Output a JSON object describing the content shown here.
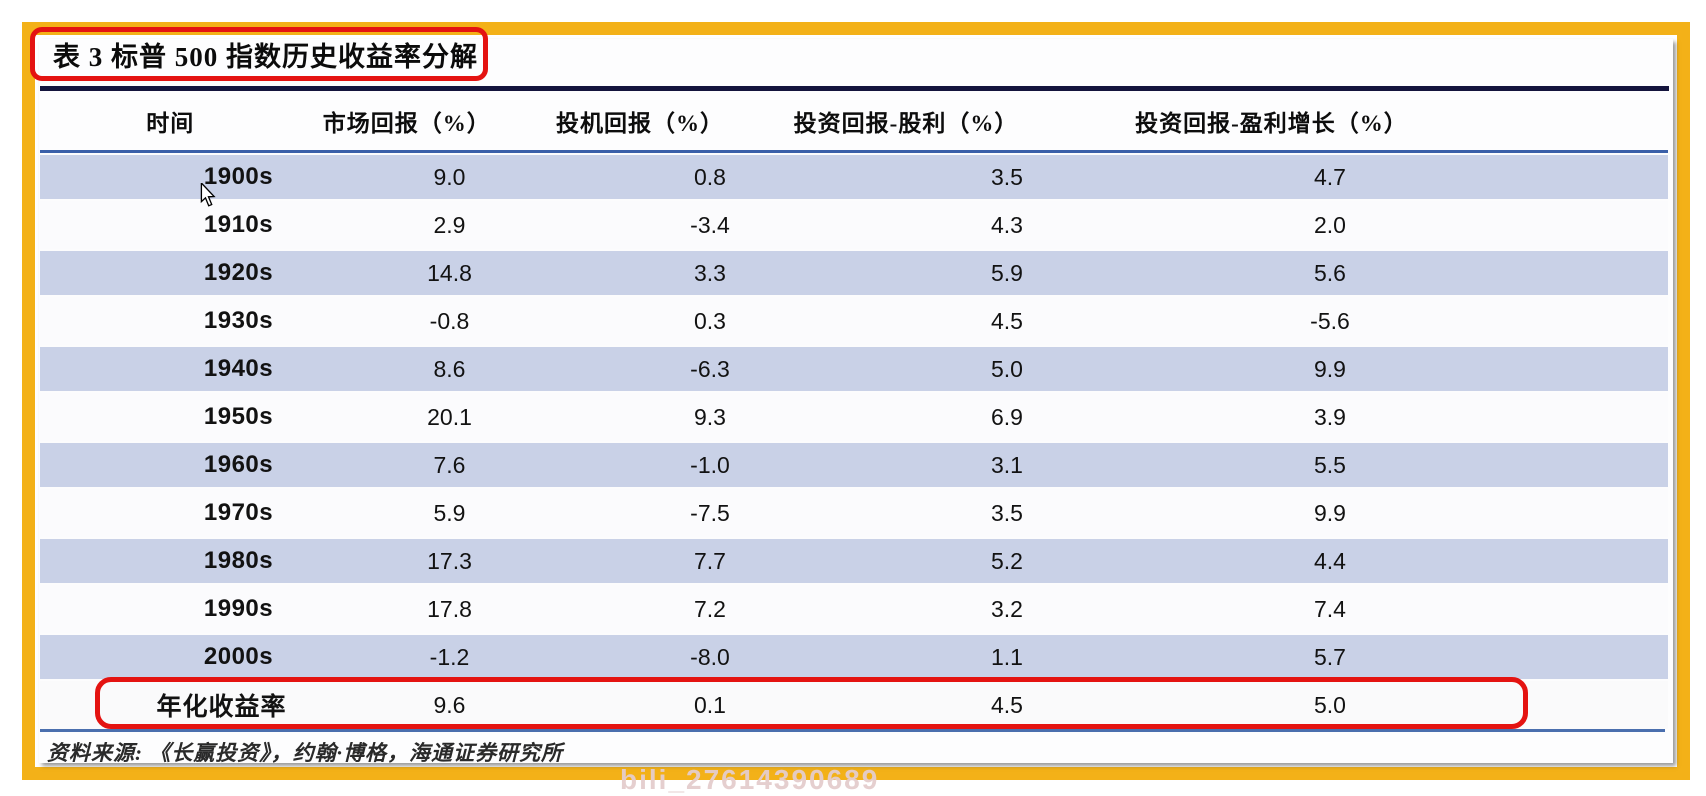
{
  "chart_data": {
    "type": "table",
    "title": "表 3 标普 500 指数历史收益率分解",
    "columns": [
      "时间",
      "市场回报（%）",
      "投机回报（%）",
      "投资回报-股利（%）",
      "投资回报-盈利增长（%）"
    ],
    "rows": [
      {
        "period": "1900s",
        "values": [
          "9.0",
          "0.8",
          "3.5",
          "4.7"
        ]
      },
      {
        "period": "1910s",
        "values": [
          "2.9",
          "-3.4",
          "4.3",
          "2.0"
        ]
      },
      {
        "period": "1920s",
        "values": [
          "14.8",
          "3.3",
          "5.9",
          "5.6"
        ]
      },
      {
        "period": "1930s",
        "values": [
          "-0.8",
          "0.3",
          "4.5",
          "-5.6"
        ]
      },
      {
        "period": "1940s",
        "values": [
          "8.6",
          "-6.3",
          "5.0",
          "9.9"
        ]
      },
      {
        "period": "1950s",
        "values": [
          "20.1",
          "9.3",
          "6.9",
          "3.9"
        ]
      },
      {
        "period": "1960s",
        "values": [
          "7.6",
          "-1.0",
          "3.1",
          "5.5"
        ]
      },
      {
        "period": "1970s",
        "values": [
          "5.9",
          "-7.5",
          "3.5",
          "9.9"
        ]
      },
      {
        "period": "1980s",
        "values": [
          "17.3",
          "7.7",
          "5.2",
          "4.4"
        ]
      },
      {
        "period": "1990s",
        "values": [
          "17.8",
          "7.2",
          "3.2",
          "7.4"
        ]
      },
      {
        "period": "2000s",
        "values": [
          "-1.2",
          "-8.0",
          "1.1",
          "5.7"
        ]
      }
    ],
    "summary_row": {
      "period": "年化收益率",
      "values": [
        "9.6",
        "0.1",
        "4.5",
        "5.0"
      ]
    },
    "source": "资料来源: 《长赢投资》，约翰·博格，海通证券研究所",
    "layout": {
      "striped_rows": "alternating starting with 1900s",
      "grid": "horizontal stripes only",
      "highlighted": [
        "title",
        "summary_row"
      ]
    }
  },
  "watermark": "bili_27614390689",
  "colors": {
    "frame_gold": "#f3b118",
    "annotation_red": "#e41311",
    "row_stripe": "#c9d1e7",
    "title_rule_navy": "#14143d",
    "header_line_blue": "#3a5fa8",
    "footer_line_blue": "#4a6fae"
  }
}
